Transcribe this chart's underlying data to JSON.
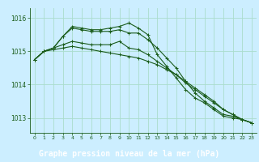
{
  "background_color": "#cceeff",
  "plot_bg_color": "#cceeff",
  "grid_color": "#aaddcc",
  "line_color": "#1a5c1a",
  "footer_bg": "#2d6e2d",
  "footer_text_color": "#ffffff",
  "title": "Graphe pression niveau de la mer (hPa)",
  "xlim": [
    -0.5,
    23.5
  ],
  "ylim": [
    1012.55,
    1016.3
  ],
  "yticks": [
    1013,
    1014,
    1015,
    1016
  ],
  "xticks": [
    0,
    1,
    2,
    3,
    4,
    5,
    6,
    7,
    8,
    9,
    10,
    11,
    12,
    13,
    14,
    15,
    16,
    17,
    18,
    19,
    20,
    21,
    22,
    23
  ],
  "series": [
    [
      1014.75,
      1015.0,
      1015.05,
      1015.1,
      1015.15,
      1015.1,
      1015.05,
      1015.0,
      1014.95,
      1014.9,
      1014.85,
      1014.8,
      1014.7,
      1014.6,
      1014.45,
      1014.3,
      1014.1,
      1013.9,
      1013.7,
      1013.5,
      1013.25,
      1013.1,
      1012.95,
      1012.85
    ],
    [
      1014.75,
      1015.0,
      1015.1,
      1015.2,
      1015.3,
      1015.25,
      1015.2,
      1015.2,
      1015.2,
      1015.3,
      1015.1,
      1015.05,
      1014.9,
      1014.7,
      1014.5,
      1014.3,
      1014.05,
      1013.85,
      1013.65,
      1013.45,
      1013.25,
      1013.1,
      1012.95,
      1012.85
    ],
    [
      1014.75,
      1015.0,
      1015.1,
      1015.45,
      1015.7,
      1015.65,
      1015.6,
      1015.6,
      1015.6,
      1015.65,
      1015.55,
      1015.55,
      1015.35,
      1015.1,
      1014.8,
      1014.5,
      1014.1,
      1013.75,
      1013.5,
      1013.3,
      1013.1,
      1013.05,
      1012.95,
      1012.85
    ],
    [
      1014.75,
      1015.0,
      1015.1,
      1015.45,
      1015.75,
      1015.7,
      1015.65,
      1015.65,
      1015.7,
      1015.75,
      1015.85,
      1015.7,
      1015.5,
      1014.9,
      1014.55,
      1014.2,
      1013.85,
      1013.6,
      1013.45,
      1013.25,
      1013.05,
      1013.0,
      1012.95,
      1012.85
    ]
  ],
  "figsize": [
    3.2,
    2.0
  ],
  "dpi": 100
}
